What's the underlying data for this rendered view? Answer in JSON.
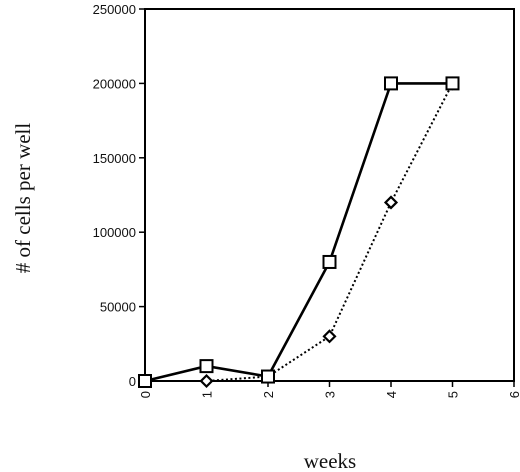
{
  "chart_data": {
    "type": "line",
    "title": "",
    "xlabel": "weeks",
    "ylabel": "# of cells per well",
    "xlim": [
      0,
      6
    ],
    "ylim": [
      0,
      250000
    ],
    "x_ticks": [
      "0",
      "1",
      "2",
      "3",
      "4",
      "5",
      "6"
    ],
    "y_ticks": [
      "0",
      "50000",
      "100000",
      "150000",
      "200000",
      "250000"
    ],
    "grid": false,
    "legend": "none",
    "series": [
      {
        "marker": "square",
        "line_style": "solid",
        "x": [
          0,
          1,
          2,
          3,
          4,
          5
        ],
        "y": [
          0,
          10000,
          3000,
          80000,
          200000,
          200000
        ]
      },
      {
        "marker": "diamond",
        "line_style": "dotted",
        "x": [
          0,
          1,
          2,
          3,
          4,
          5
        ],
        "y": [
          0,
          0,
          3000,
          30000,
          120000,
          200000
        ]
      }
    ]
  }
}
